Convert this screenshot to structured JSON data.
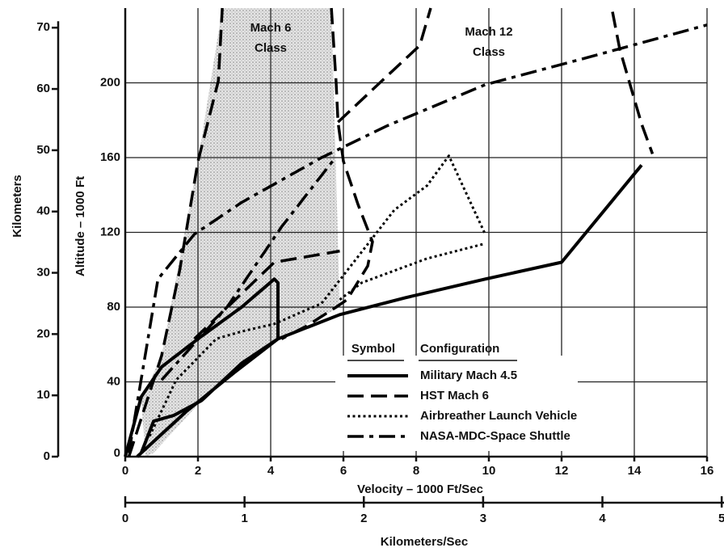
{
  "chart_data": {
    "type": "line",
    "x_label": "Velocity – 1000 Ft/Sec",
    "y_label": "Altitude – 1000 Ft",
    "y2_label": "Kilometers",
    "x2_label": "Kilometers/Sec",
    "xlim": [
      0,
      16
    ],
    "xticks": [
      0,
      2,
      4,
      6,
      8,
      10,
      12,
      14,
      16
    ],
    "ylim": [
      0,
      240
    ],
    "yticks": [
      0,
      40,
      80,
      120,
      160,
      200
    ],
    "y2lim": [
      0,
      73.2
    ],
    "y2ticks": [
      0,
      10,
      20,
      30,
      40,
      50,
      60,
      70
    ],
    "x2lim": [
      0,
      4.877
    ],
    "x2ticks": [
      0,
      1,
      2,
      3,
      4,
      5
    ],
    "grid": true,
    "annotations": [
      [
        "Mach 6",
        "Class"
      ],
      [
        "Mach 12",
        "Class"
      ]
    ],
    "legend_headers": [
      "Symbol",
      "Configuration"
    ],
    "shaded_regions": [
      {
        "x": [
          2.67,
          5.67,
          5.9,
          4.2,
          2.1,
          0.78,
          0.56,
          0.44,
          1,
          2
        ],
        "y": [
          240,
          240,
          80,
          63,
          30,
          2,
          0,
          30,
          54,
          158
        ]
      }
    ],
    "series": [
      {
        "name": "Military Mach 4.5",
        "color": "#000000",
        "style": "solid",
        "x": [
          0,
          0.44,
          1,
          2,
          3.2,
          4.1,
          4.2,
          4.2,
          3.2,
          2.1,
          1.33,
          0.78,
          0.44,
          null,
          0.33,
          1.67,
          3,
          4.2,
          5.9,
          7.7,
          9.9,
          12,
          14.2
        ],
        "y": [
          0,
          32,
          48,
          63,
          80,
          95,
          93,
          63,
          50,
          30,
          22,
          19,
          2,
          null,
          0,
          24,
          45,
          63,
          76,
          85,
          95,
          104,
          156
        ]
      },
      {
        "name": "HST Mach 6",
        "color": "#000000",
        "style": "dash",
        "x": [
          0.1,
          0.6,
          1,
          1.5,
          2,
          2.56,
          2.67,
          null,
          5.67,
          5.8,
          5.85,
          6,
          6.4,
          6.8,
          6.67,
          6.1,
          5.8,
          5,
          4.3,
          null,
          5.85,
          7,
          8.1,
          8.4,
          null,
          13.4,
          13.6,
          14.2,
          14.5,
          null,
          1.9,
          4.1,
          5.9
        ],
        "y": [
          0,
          30,
          54,
          100,
          158,
          201,
          240,
          null,
          240,
          200,
          179,
          158,
          135,
          115,
          102,
          84,
          80,
          70,
          63,
          null,
          179,
          200,
          220,
          240,
          null,
          238,
          218,
          178,
          162,
          null,
          63,
          104,
          110
        ]
      },
      {
        "name": "Airbreather Launch Vehicle",
        "color": "#000000",
        "style": "dot",
        "x": [
          0.67,
          1.4,
          2.5,
          3.2,
          4.1,
          5.4,
          7.4,
          8.3,
          8.9,
          9.9,
          null,
          5.9,
          6.5,
          8.3,
          9.9
        ],
        "y": [
          11,
          41,
          63,
          67,
          71,
          82,
          132,
          145,
          161,
          119,
          null,
          84,
          93,
          106,
          114
        ]
      },
      {
        "name": "NASA-MDC-Space Shuttle",
        "color": "#000000",
        "style": "dashdot",
        "x": [
          0.1,
          0.9,
          1.9,
          3.2,
          5.4,
          7.2,
          9.9,
          12.8,
          16,
          null,
          1,
          2.8,
          4.3,
          5.7
        ],
        "y": [
          2,
          95,
          119,
          136,
          160,
          177,
          199,
          214,
          231,
          null,
          41,
          80,
          123,
          158
        ]
      }
    ]
  }
}
